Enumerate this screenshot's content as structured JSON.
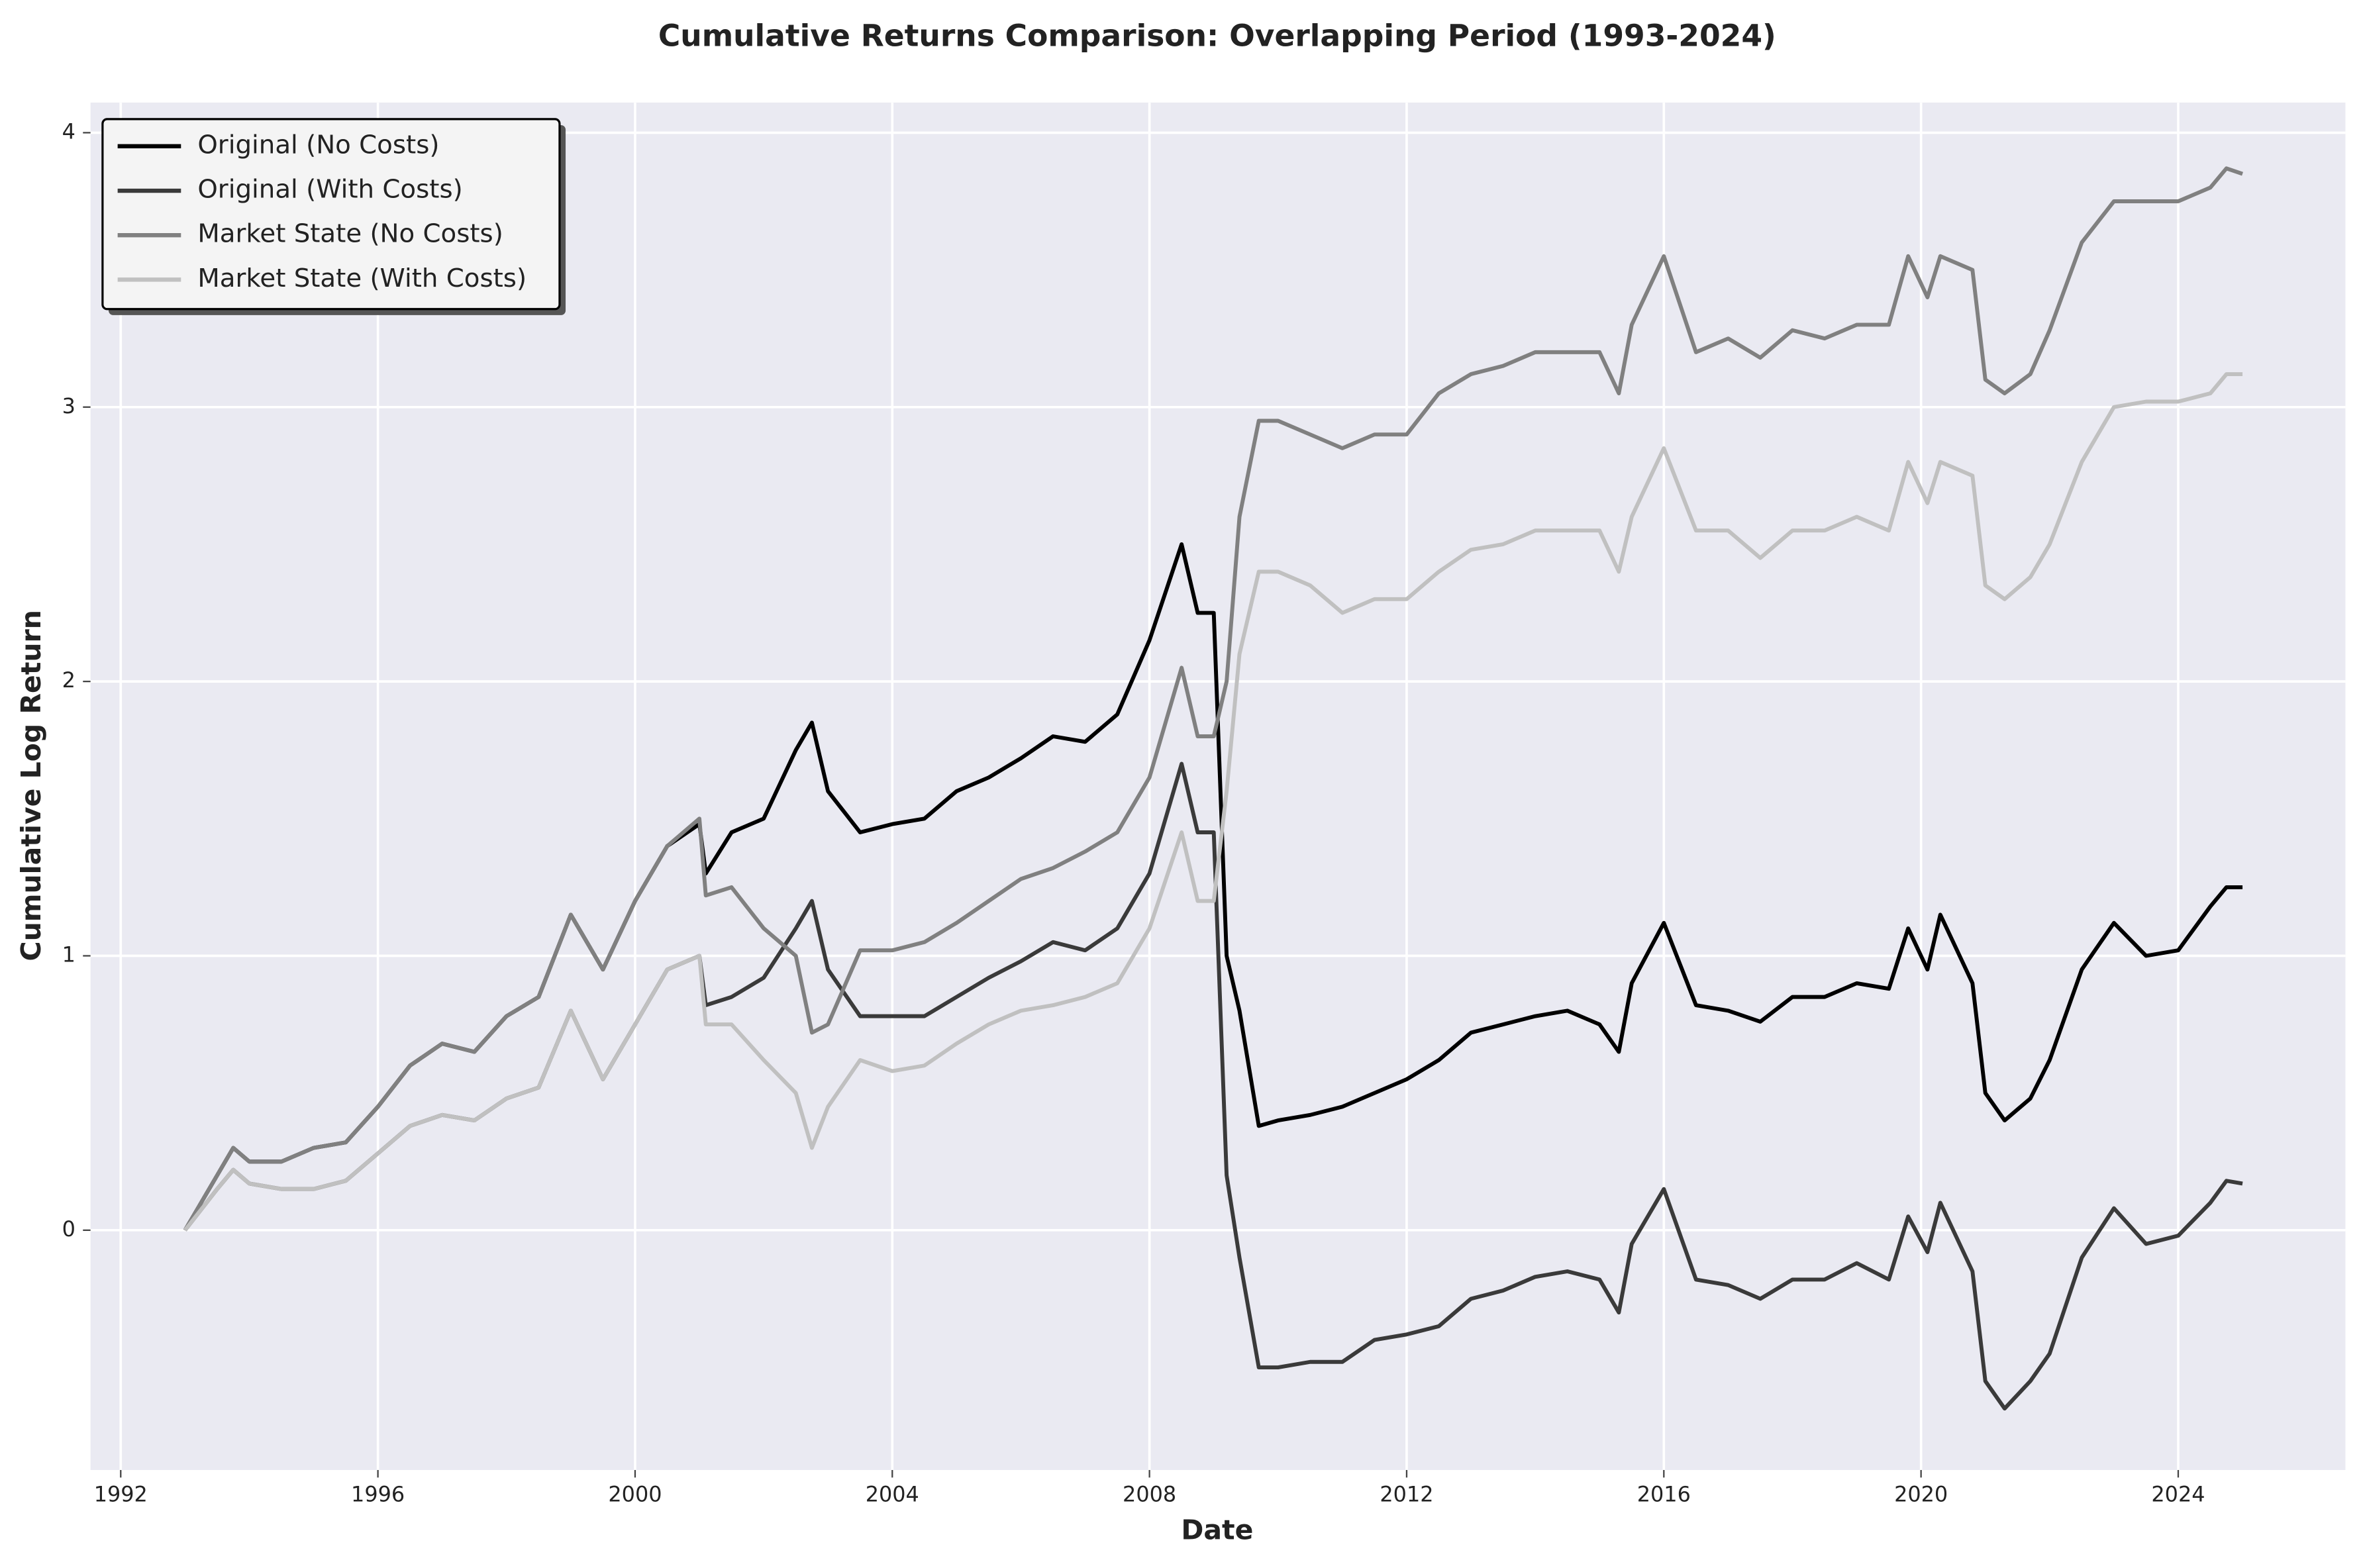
{
  "chart_data": {
    "type": "line",
    "title": "Cumulative Returns Comparison: Overlapping Period (1993-2024)",
    "x_label": "Date",
    "y_label": "Cumulative Log Return",
    "x": [
      1993,
      1993.5,
      1993.75,
      1994,
      1994.5,
      1995,
      1995.5,
      1996,
      1996.5,
      1997,
      1997.5,
      1998,
      1998.5,
      1999,
      1999.5,
      2000,
      2000.5,
      2001,
      2001.1,
      2001.5,
      2002,
      2002.5,
      2002.75,
      2003,
      2003.5,
      2004,
      2004.5,
      2005,
      2005.5,
      2006,
      2006.5,
      2007,
      2007.5,
      2008,
      2008.5,
      2008.75,
      2009,
      2009.2,
      2009.4,
      2009.7,
      2010,
      2010.5,
      2011,
      2011.5,
      2012,
      2012.5,
      2013,
      2013.5,
      2014,
      2014.5,
      2015,
      2015.3,
      2015.5,
      2016,
      2016.5,
      2017,
      2017.5,
      2018,
      2018.5,
      2019,
      2019.5,
      2019.8,
      2020.1,
      2020.3,
      2020.8,
      2021,
      2021.3,
      2021.7,
      2022,
      2022.5,
      2023,
      2023.5,
      2024,
      2024.5,
      2024.75,
      2025
    ],
    "series": [
      {
        "name": "Original (No Costs)",
        "color": "#000000",
        "values": [
          0,
          0.2,
          0.3,
          0.25,
          0.25,
          0.3,
          0.32,
          0.45,
          0.6,
          0.68,
          0.65,
          0.78,
          0.85,
          1.15,
          0.95,
          1.2,
          1.4,
          1.48,
          1.3,
          1.45,
          1.5,
          1.75,
          1.85,
          1.6,
          1.45,
          1.48,
          1.5,
          1.6,
          1.65,
          1.72,
          1.8,
          1.78,
          1.88,
          2.15,
          2.5,
          2.25,
          2.25,
          1.0,
          0.8,
          0.38,
          0.4,
          0.42,
          0.45,
          0.5,
          0.55,
          0.62,
          0.72,
          0.75,
          0.78,
          0.8,
          0.75,
          0.65,
          0.9,
          1.12,
          0.82,
          0.8,
          0.76,
          0.85,
          0.85,
          0.9,
          0.88,
          1.1,
          0.95,
          1.15,
          0.9,
          0.5,
          0.4,
          0.48,
          0.62,
          0.95,
          1.12,
          1.0,
          1.02,
          1.18,
          1.25,
          1.25
        ]
      },
      {
        "name": "Original (With Costs)",
        "color": "#3a3a3a",
        "values": [
          0,
          0.15,
          0.22,
          0.17,
          0.15,
          0.15,
          0.18,
          0.28,
          0.38,
          0.42,
          0.4,
          0.48,
          0.52,
          0.8,
          0.55,
          0.75,
          0.95,
          1.0,
          0.82,
          0.85,
          0.92,
          1.1,
          1.2,
          0.95,
          0.78,
          0.78,
          0.78,
          0.85,
          0.92,
          0.98,
          1.05,
          1.02,
          1.1,
          1.3,
          1.7,
          1.45,
          1.45,
          0.2,
          -0.1,
          -0.5,
          -0.5,
          -0.48,
          -0.48,
          -0.4,
          -0.38,
          -0.35,
          -0.25,
          -0.22,
          -0.17,
          -0.15,
          -0.18,
          -0.3,
          -0.05,
          0.15,
          -0.18,
          -0.2,
          -0.25,
          -0.18,
          -0.18,
          -0.12,
          -0.18,
          0.05,
          -0.08,
          0.1,
          -0.15,
          -0.55,
          -0.65,
          -0.55,
          -0.45,
          -0.1,
          0.08,
          -0.05,
          -0.02,
          0.1,
          0.18,
          0.17
        ]
      },
      {
        "name": "Market State (No Costs)",
        "color": "#808080",
        "values": [
          0,
          0.2,
          0.3,
          0.25,
          0.25,
          0.3,
          0.32,
          0.45,
          0.6,
          0.68,
          0.65,
          0.78,
          0.85,
          1.15,
          0.95,
          1.2,
          1.4,
          1.5,
          1.22,
          1.25,
          1.1,
          1.0,
          0.72,
          0.75,
          1.02,
          1.02,
          1.05,
          1.12,
          1.2,
          1.28,
          1.32,
          1.38,
          1.45,
          1.65,
          2.05,
          1.8,
          1.8,
          2.0,
          2.6,
          2.95,
          2.95,
          2.9,
          2.85,
          2.9,
          2.9,
          3.05,
          3.12,
          3.15,
          3.2,
          3.2,
          3.2,
          3.05,
          3.3,
          3.55,
          3.2,
          3.25,
          3.18,
          3.28,
          3.25,
          3.3,
          3.3,
          3.55,
          3.4,
          3.55,
          3.5,
          3.1,
          3.05,
          3.12,
          3.28,
          3.6,
          3.75,
          3.75,
          3.75,
          3.8,
          3.87,
          3.85
        ]
      },
      {
        "name": "Market State (With Costs)",
        "color": "#c0c0c0",
        "values": [
          0,
          0.15,
          0.22,
          0.17,
          0.15,
          0.15,
          0.18,
          0.28,
          0.38,
          0.42,
          0.4,
          0.48,
          0.52,
          0.8,
          0.55,
          0.75,
          0.95,
          1.0,
          0.75,
          0.75,
          0.62,
          0.5,
          0.3,
          0.45,
          0.62,
          0.58,
          0.6,
          0.68,
          0.75,
          0.8,
          0.82,
          0.85,
          0.9,
          1.1,
          1.45,
          1.2,
          1.2,
          1.6,
          2.1,
          2.4,
          2.4,
          2.35,
          2.25,
          2.3,
          2.3,
          2.4,
          2.48,
          2.5,
          2.55,
          2.55,
          2.55,
          2.4,
          2.6,
          2.85,
          2.55,
          2.55,
          2.45,
          2.55,
          2.55,
          2.6,
          2.55,
          2.8,
          2.65,
          2.8,
          2.75,
          2.35,
          2.3,
          2.38,
          2.5,
          2.8,
          3.0,
          3.02,
          3.02,
          3.05,
          3.12,
          3.12
        ]
      }
    ],
    "xlim": [
      1991.53,
      2026.6
    ],
    "xticks": [
      1992,
      1996,
      2000,
      2004,
      2008,
      2012,
      2016,
      2020,
      2024
    ],
    "ylim": [
      -0.874,
      4.11
    ],
    "yticks": [
      0,
      1,
      2,
      3,
      4
    ],
    "grid": true,
    "legend": "upper left"
  }
}
